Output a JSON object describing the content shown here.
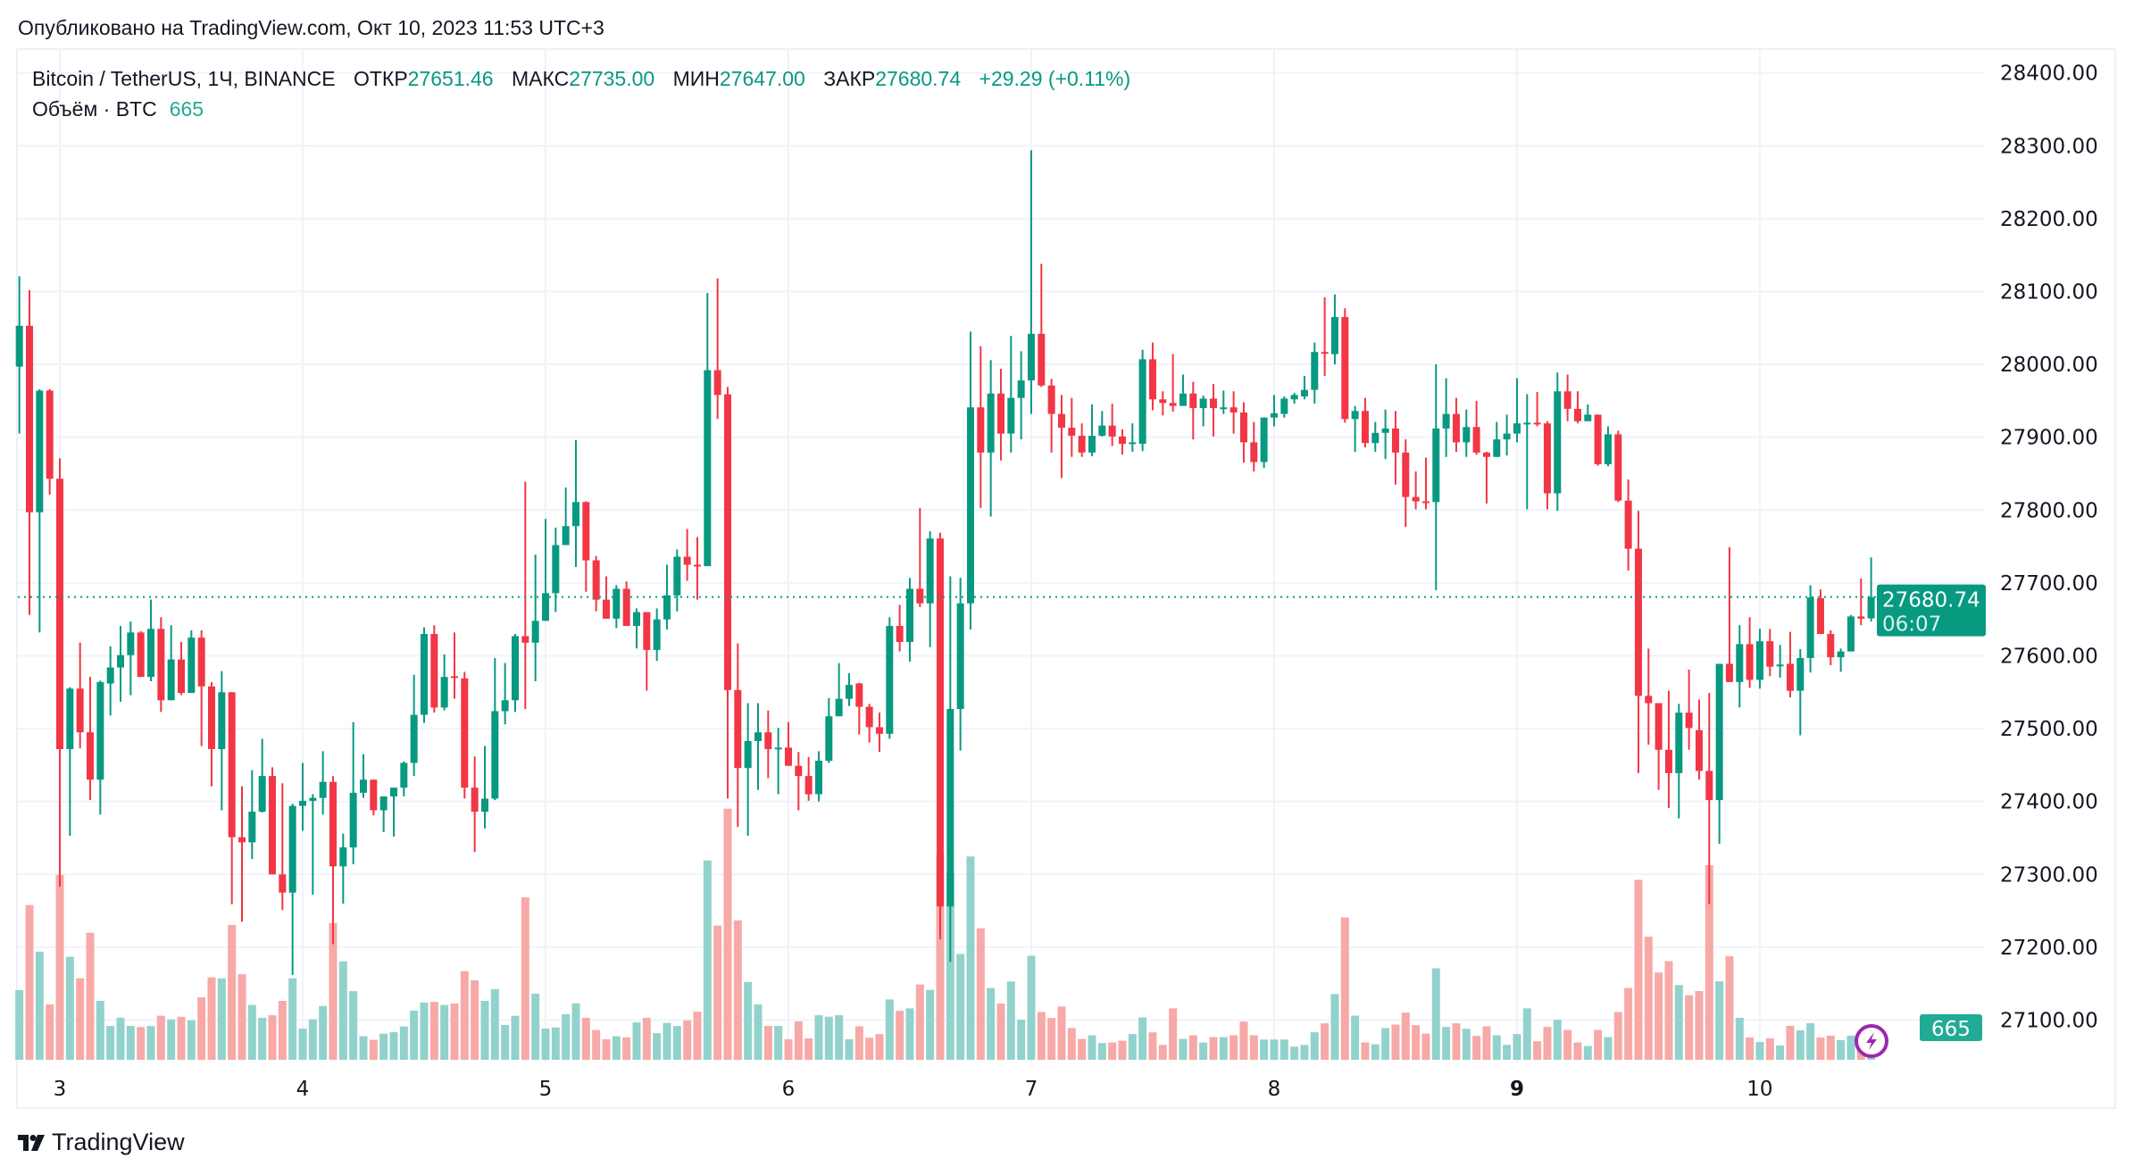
{
  "header": {
    "published": "Опубликовано на TradingView.com, Окт 10, 2023 11:53 UTC+3"
  },
  "legend": {
    "symbol": "Bitcoin / TetherUS, 1Ч, BINANCE",
    "open_label": "ОТКР",
    "open": "27651.46",
    "high_label": "МАКС",
    "high": "27735.00",
    "low_label": "МИН",
    "low": "27647.00",
    "close_label": "ЗАКР",
    "close": "27680.74",
    "change": "+29.29 (+0.11%)",
    "volume_label": "Объём · BTC",
    "volume": "665"
  },
  "last_price": {
    "price": "27680.74",
    "countdown": "06:07",
    "volume": "665"
  },
  "footer": {
    "brand": "TradingView"
  },
  "colors": {
    "up": "#089981",
    "down": "#f23645",
    "volume_up": "#92d2cc",
    "volume_down": "#f7a9a7",
    "last_price": "#089981",
    "volume_badge": "#22ab94",
    "alert_icon": "#9c27b0"
  },
  "chart_data": {
    "type": "candlestick",
    "title": "Bitcoin / TetherUS, 1Ч, BINANCE",
    "interval": "1Ч",
    "ylim": [
      27030,
      28430
    ],
    "y_ticks": [
      "28400.00",
      "28300.00",
      "28200.00",
      "28100.00",
      "28000.00",
      "27900.00",
      "27800.00",
      "27700.00",
      "27600.00",
      "27500.00",
      "27400.00",
      "27300.00",
      "27200.00",
      "27100.00"
    ],
    "x_ticks": [
      {
        "label": "3",
        "bold": false
      },
      {
        "label": "4",
        "bold": false
      },
      {
        "label": "5",
        "bold": false
      },
      {
        "label": "6",
        "bold": false
      },
      {
        "label": "7",
        "bold": false
      },
      {
        "label": "8",
        "bold": false
      },
      {
        "label": "9",
        "bold": true
      },
      {
        "label": "10",
        "bold": false
      }
    ],
    "grid": true,
    "columns": [
      "open",
      "high",
      "low",
      "close",
      "volume"
    ],
    "candles": [
      [
        27997,
        28121,
        27905,
        28053,
        1444
      ],
      [
        28053,
        28102,
        27656,
        27797,
        3207
      ],
      [
        27797,
        27966,
        27632,
        27964,
        2241
      ],
      [
        27964,
        27966,
        27821,
        27843,
        1147
      ],
      [
        27843,
        27871,
        27283,
        27472,
        3834
      ],
      [
        27472,
        27557,
        27353,
        27555,
        2135
      ],
      [
        27555,
        27618,
        27473,
        27495,
        1689
      ],
      [
        27495,
        27571,
        27402,
        27430,
        2634
      ],
      [
        27430,
        27566,
        27382,
        27564,
        1221
      ],
      [
        27562,
        27613,
        27518,
        27584,
        701
      ],
      [
        27584,
        27641,
        27537,
        27601,
        871
      ],
      [
        27601,
        27647,
        27546,
        27632,
        701
      ],
      [
        27632,
        27634,
        27571,
        27571,
        680
      ],
      [
        27571,
        27677,
        27565,
        27637,
        701
      ],
      [
        27637,
        27653,
        27523,
        27539,
        913
      ],
      [
        27539,
        27642,
        27539,
        27595,
        839
      ],
      [
        27595,
        27619,
        27546,
        27549,
        892
      ],
      [
        27549,
        27635,
        27549,
        27625,
        818
      ],
      [
        27625,
        27635,
        27476,
        27558,
        1296
      ],
      [
        27558,
        27564,
        27421,
        27472,
        1710
      ],
      [
        27472,
        27579,
        27388,
        27550,
        1689
      ],
      [
        27550,
        27550,
        27259,
        27351,
        2793
      ],
      [
        27351,
        27421,
        27235,
        27344,
        1774
      ],
      [
        27344,
        27443,
        27321,
        27386,
        1136
      ],
      [
        27386,
        27486,
        27385,
        27435,
        871
      ],
      [
        27435,
        27447,
        27300,
        27300,
        924
      ],
      [
        27300,
        27425,
        27251,
        27275,
        1221
      ],
      [
        27275,
        27397,
        27162,
        27394,
        1689
      ],
      [
        27394,
        27453,
        27360,
        27401,
        648
      ],
      [
        27401,
        27410,
        27272,
        27405,
        839
      ],
      [
        27405,
        27469,
        27382,
        27427,
        1115
      ],
      [
        27427,
        27435,
        27204,
        27311,
        2836
      ],
      [
        27311,
        27356,
        27260,
        27337,
        2039
      ],
      [
        27337,
        27509,
        27314,
        27412,
        1423
      ],
      [
        27412,
        27465,
        27405,
        27430,
        489
      ],
      [
        27430,
        27430,
        27381,
        27388,
        414
      ],
      [
        27388,
        27407,
        27358,
        27407,
        542
      ],
      [
        27407,
        27419,
        27352,
        27419,
        573
      ],
      [
        27419,
        27455,
        27407,
        27453,
        690
      ],
      [
        27453,
        27574,
        27435,
        27519,
        1020
      ],
      [
        27519,
        27639,
        27508,
        27630,
        1189
      ],
      [
        27630,
        27642,
        27522,
        27529,
        1200
      ],
      [
        27529,
        27602,
        27525,
        27571,
        1136
      ],
      [
        27572,
        27632,
        27541,
        27570,
        1168
      ],
      [
        27569,
        27578,
        27404,
        27419,
        1837
      ],
      [
        27419,
        27462,
        27331,
        27386,
        1646
      ],
      [
        27386,
        27476,
        27363,
        27404,
        1221
      ],
      [
        27404,
        27597,
        27402,
        27524,
        1466
      ],
      [
        27524,
        27590,
        27506,
        27539,
        722
      ],
      [
        27539,
        27630,
        27523,
        27627,
        913
      ],
      [
        27627,
        27839,
        27527,
        27618,
        3367
      ],
      [
        27618,
        27739,
        27565,
        27648,
        1370
      ],
      [
        27648,
        27788,
        27648,
        27686,
        648
      ],
      [
        27686,
        27776,
        27660,
        27752,
        669
      ],
      [
        27752,
        27831,
        27752,
        27778,
        945
      ],
      [
        27778,
        27896,
        27722,
        27811,
        1168
      ],
      [
        27811,
        27812,
        27688,
        27731,
        871
      ],
      [
        27731,
        27737,
        27661,
        27677,
        616
      ],
      [
        27677,
        27709,
        27651,
        27651,
        425
      ],
      [
        27651,
        27697,
        27638,
        27692,
        489
      ],
      [
        27692,
        27702,
        27641,
        27641,
        467
      ],
      [
        27641,
        27665,
        27610,
        27660,
        775
      ],
      [
        27660,
        27660,
        27552,
        27608,
        871
      ],
      [
        27608,
        27665,
        27593,
        27650,
        552
      ],
      [
        27650,
        27725,
        27636,
        27683,
        765
      ],
      [
        27683,
        27746,
        27661,
        27736,
        701
      ],
      [
        27736,
        27774,
        27703,
        27725,
        818
      ],
      [
        27725,
        27763,
        27677,
        27723,
        998
      ],
      [
        27723,
        28098,
        27723,
        27992,
        4131
      ],
      [
        27992,
        28118,
        27925,
        27958,
        2782
      ],
      [
        27959,
        27969,
        27404,
        27553,
        5204
      ],
      [
        27553,
        27617,
        27365,
        27446,
        2889
      ],
      [
        27446,
        27535,
        27353,
        27483,
        1614
      ],
      [
        27483,
        27535,
        27416,
        27495,
        1147
      ],
      [
        27495,
        27525,
        27432,
        27472,
        701
      ],
      [
        27472,
        27501,
        27410,
        27474,
        701
      ],
      [
        27474,
        27509,
        27449,
        27449,
        425
      ],
      [
        27449,
        27468,
        27388,
        27435,
        797
      ],
      [
        27435,
        27461,
        27401,
        27410,
        446
      ],
      [
        27410,
        27469,
        27400,
        27456,
        924
      ],
      [
        27456,
        27542,
        27453,
        27517,
        892
      ],
      [
        27517,
        27590,
        27517,
        27541,
        924
      ],
      [
        27541,
        27576,
        27531,
        27560,
        425
      ],
      [
        27562,
        27563,
        27492,
        27530,
        694
      ],
      [
        27530,
        27534,
        27481,
        27502,
        458
      ],
      [
        27502,
        27522,
        27468,
        27493,
        533
      ],
      [
        27493,
        27653,
        27486,
        27641,
        1251
      ],
      [
        27641,
        27670,
        27606,
        27619,
        1016
      ],
      [
        27619,
        27707,
        27592,
        27692,
        1066
      ],
      [
        27692,
        27803,
        27667,
        27672,
        1561
      ],
      [
        27672,
        27771,
        27612,
        27761,
        1450
      ],
      [
        27761,
        27769,
        27211,
        27256,
        4250
      ],
      [
        27256,
        27709,
        27180,
        27527,
        3866
      ],
      [
        27527,
        27707,
        27470,
        27672,
        2193
      ],
      [
        27672,
        28045,
        27636,
        27941,
        4213
      ],
      [
        27941,
        28025,
        27803,
        27879,
        2726
      ],
      [
        27879,
        28006,
        27791,
        27960,
        1487
      ],
      [
        27960,
        27994,
        27868,
        27905,
        1165
      ],
      [
        27905,
        28039,
        27879,
        27954,
        1623
      ],
      [
        27954,
        28018,
        27897,
        27978,
        830
      ],
      [
        27978,
        28294,
        27932,
        28042,
        2156
      ],
      [
        28042,
        28138,
        27969,
        27971,
        991
      ],
      [
        27971,
        27980,
        27879,
        27932,
        867
      ],
      [
        27932,
        27958,
        27844,
        27913,
        1103
      ],
      [
        27913,
        27954,
        27873,
        27902,
        657
      ],
      [
        27902,
        27919,
        27873,
        27879,
        434
      ],
      [
        27879,
        27945,
        27874,
        27902,
        508
      ],
      [
        27902,
        27936,
        27901,
        27916,
        347
      ],
      [
        27916,
        27946,
        27888,
        27901,
        359
      ],
      [
        27901,
        27911,
        27876,
        27891,
        396
      ],
      [
        27891,
        27919,
        27880,
        27893,
        533
      ],
      [
        27891,
        28020,
        27881,
        28007,
        880
      ],
      [
        28007,
        28030,
        27937,
        27952,
        570
      ],
      [
        27952,
        27963,
        27930,
        27947,
        310
      ],
      [
        27947,
        28014,
        27935,
        27943,
        1066
      ],
      [
        27943,
        27986,
        27943,
        27960,
        434
      ],
      [
        27960,
        27976,
        27897,
        27940,
        508
      ],
      [
        27940,
        27957,
        27915,
        27953,
        359
      ],
      [
        27953,
        27973,
        27901,
        27940,
        471
      ],
      [
        27940,
        27964,
        27932,
        27941,
        471
      ],
      [
        27941,
        27963,
        27905,
        27934,
        508
      ],
      [
        27934,
        27948,
        27865,
        27893,
        793
      ],
      [
        27893,
        27921,
        27853,
        27866,
        508
      ],
      [
        27866,
        27927,
        27858,
        27927,
        421
      ],
      [
        27927,
        27958,
        27915,
        27933,
        421
      ],
      [
        27932,
        27956,
        27927,
        27953,
        421
      ],
      [
        27952,
        27961,
        27946,
        27958,
        273
      ],
      [
        27956,
        27984,
        27952,
        27965,
        310
      ],
      [
        27965,
        28030,
        27946,
        28017,
        570
      ],
      [
        28017,
        28092,
        27984,
        28015,
        756
      ],
      [
        28014,
        28096,
        28000,
        28065,
        1363
      ],
      [
        28065,
        28077,
        27920,
        27925,
        2949
      ],
      [
        27925,
        27943,
        27880,
        27936,
        917
      ],
      [
        27936,
        27954,
        27886,
        27892,
        359
      ],
      [
        27892,
        27921,
        27880,
        27906,
        322
      ],
      [
        27906,
        27938,
        27870,
        27912,
        657
      ],
      [
        27912,
        27936,
        27835,
        27879,
        731
      ],
      [
        27879,
        27897,
        27777,
        27818,
        979
      ],
      [
        27818,
        27853,
        27801,
        27812,
        719
      ],
      [
        27812,
        27872,
        27801,
        27811,
        545
      ],
      [
        27811,
        28000,
        27690,
        27912,
        1896
      ],
      [
        27912,
        27981,
        27873,
        27932,
        681
      ],
      [
        27932,
        27954,
        27880,
        27893,
        756
      ],
      [
        27893,
        27938,
        27873,
        27914,
        644
      ],
      [
        27914,
        27950,
        27876,
        27879,
        496
      ],
      [
        27879,
        27880,
        27809,
        27873,
        694
      ],
      [
        27873,
        27921,
        27873,
        27897,
        508
      ],
      [
        27897,
        27931,
        27875,
        27905,
        310
      ],
      [
        27905,
        27981,
        27893,
        27919,
        533
      ],
      [
        27919,
        27959,
        27801,
        27920,
        1066
      ],
      [
        27920,
        27962,
        27915,
        27919,
        384
      ],
      [
        27919,
        27922,
        27801,
        27823,
        681
      ],
      [
        27823,
        27989,
        27799,
        27963,
        830
      ],
      [
        27963,
        27986,
        27922,
        27939,
        620
      ],
      [
        27939,
        27963,
        27919,
        27922,
        359
      ],
      [
        27922,
        27945,
        27922,
        27931,
        285
      ],
      [
        27931,
        27931,
        27861,
        27863,
        620
      ],
      [
        27863,
        27915,
        27860,
        27904,
        471
      ],
      [
        27904,
        27909,
        27811,
        27813,
        991
      ],
      [
        27813,
        27842,
        27717,
        27747,
        1487
      ],
      [
        27747,
        27799,
        27439,
        27545,
        3729
      ],
      [
        27545,
        27610,
        27478,
        27535,
        2552
      ],
      [
        27535,
        27535,
        27416,
        27471,
        1809
      ],
      [
        27471,
        27552,
        27391,
        27439,
        2044
      ],
      [
        27439,
        27534,
        27377,
        27522,
        1549
      ],
      [
        27522,
        27581,
        27471,
        27501,
        1338
      ],
      [
        27498,
        27540,
        27430,
        27442,
        1425
      ],
      [
        27442,
        27549,
        27259,
        27402,
        4033
      ],
      [
        27402,
        27589,
        27342,
        27589,
        1628
      ],
      [
        27589,
        27749,
        27564,
        27564,
        2146
      ],
      [
        27564,
        27642,
        27529,
        27616,
        870
      ],
      [
        27616,
        27653,
        27556,
        27567,
        463
      ],
      [
        27567,
        27637,
        27555,
        27620,
        370
      ],
      [
        27620,
        27637,
        27572,
        27585,
        444
      ],
      [
        27586,
        27615,
        27570,
        27588,
        296
      ],
      [
        27589,
        27633,
        27543,
        27552,
        703
      ],
      [
        27552,
        27609,
        27491,
        27597,
        611
      ],
      [
        27597,
        27697,
        27577,
        27680,
        759
      ],
      [
        27679,
        27691,
        27630,
        27630,
        463
      ],
      [
        27630,
        27635,
        27587,
        27598,
        500
      ],
      [
        27598,
        27610,
        27578,
        27606,
        407
      ],
      [
        27606,
        27656,
        27606,
        27654,
        500
      ],
      [
        27654,
        27706,
        27642,
        27651,
        400
      ],
      [
        27651.46,
        27735,
        27647,
        27680.74,
        665
      ]
    ]
  }
}
